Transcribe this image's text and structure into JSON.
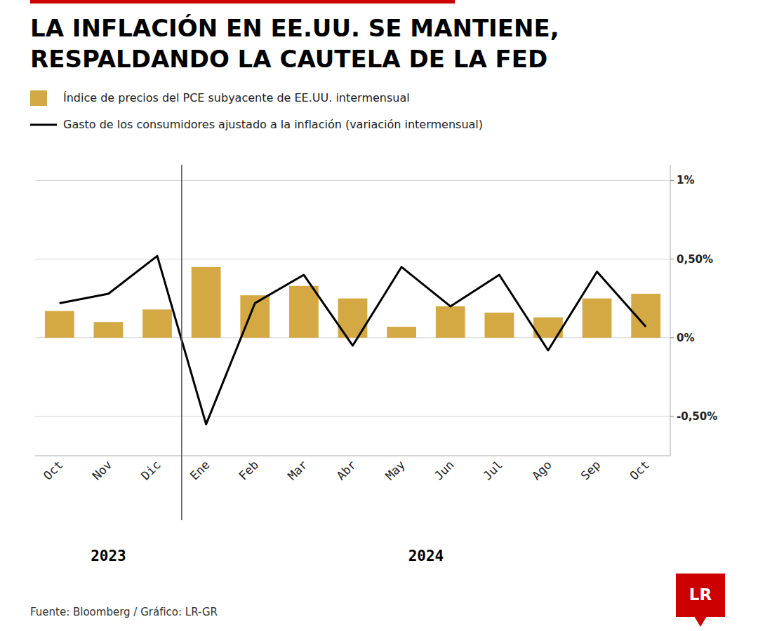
{
  "chart_data": {
    "type": "bar",
    "title": "LA INFLACIÓN EN EE.UU. SE MANTIENE,\nRESPALDANDO LA CAUTELA DE LA FED",
    "categories": [
      "Oct",
      "Nov",
      "Dic",
      "Ene",
      "Feb",
      "Mar",
      "Abr",
      "May",
      "Jun",
      "Jul",
      "Ago",
      "Sep",
      "Oct"
    ],
    "series": [
      {
        "name": "Índice de precios del PCE subyacente de EE.UU. intermensual",
        "type": "bar",
        "color": "#D4A843",
        "values": [
          0.17,
          0.1,
          0.18,
          0.45,
          0.27,
          0.33,
          0.25,
          0.07,
          0.2,
          0.16,
          0.13,
          0.25,
          0.28
        ]
      },
      {
        "name": "Gasto de los consumidores ajustado a la inflación (variación intermensual)",
        "type": "line",
        "color": "#000000",
        "values": [
          0.22,
          0.28,
          0.52,
          -0.55,
          0.22,
          0.4,
          -0.05,
          0.45,
          0.2,
          0.4,
          -0.08,
          0.42,
          0.07
        ]
      }
    ],
    "ylim": [
      -0.75,
      1.1
    ],
    "yticks": [
      {
        "value": -0.5,
        "label": "-0,50%"
      },
      {
        "value": 0.0,
        "label": "0%"
      },
      {
        "value": 0.5,
        "label": "0,50%"
      },
      {
        "value": 1.0,
        "label": "1%"
      }
    ],
    "grid": true,
    "legend": "top-left",
    "annotations": [
      "2023",
      "2024",
      "Fuente: Bloomberg / Gráfico: LR-GR",
      "LR"
    ]
  }
}
